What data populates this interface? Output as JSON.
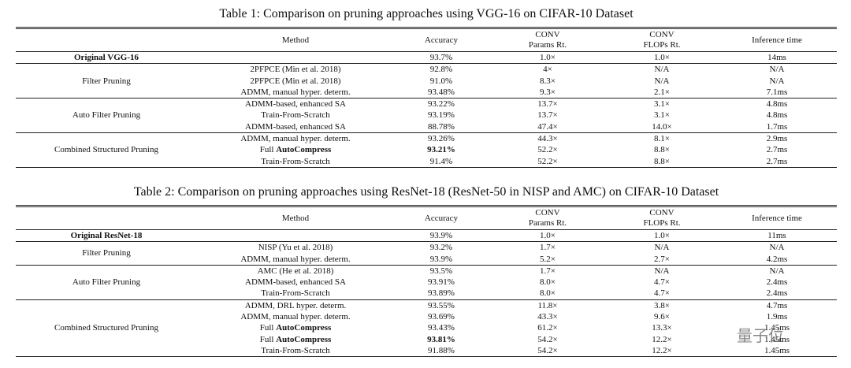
{
  "tables": [
    {
      "title": "Table 1: Comparison on pruning approaches using VGG-16 on CIFAR-10 Dataset",
      "header": [
        [
          "Method"
        ],
        [
          "Accuracy"
        ],
        [
          "CONV",
          "Params Rt."
        ],
        [
          "CONV",
          "FLOPs Rt."
        ],
        [
          "Inference time"
        ]
      ],
      "original": {
        "label": "Original VGG-16",
        "values": [
          "93.7%",
          "1.0×",
          "1.0×",
          "14ms"
        ]
      },
      "groups": [
        {
          "label": "Filter Pruning",
          "rows": [
            [
              "2PFPCE (Min et al. 2018)",
              "92.8%",
              "4×",
              "N/A",
              "N/A"
            ],
            [
              "2PFPCE (Min et al. 2018)",
              "91.0%",
              "8.3×",
              "N/A",
              "N/A"
            ],
            [
              "ADMM, manual hyper. determ.",
              "93.48%",
              "9.3×",
              "2.1×",
              "7.1ms"
            ]
          ]
        },
        {
          "label": "Auto Filter Pruning",
          "rows": [
            [
              "ADMM-based, enhanced SA",
              "93.22%",
              "13.7×",
              "3.1×",
              "4.8ms"
            ],
            [
              "Train-From-Scratch",
              "93.19%",
              "13.7×",
              "3.1×",
              "4.8ms"
            ],
            [
              "ADMM-based, enhanced SA",
              "88.78%",
              "47.4×",
              "14.0×",
              "1.7ms"
            ]
          ]
        },
        {
          "label": "Combined Structured Pruning",
          "rows": [
            [
              "ADMM, manual hyper. determ.",
              "93.26%",
              "44.3×",
              "8.1×",
              "2.9ms"
            ],
            [
              {
                "text": "Full",
                "bold": "AutoCompress"
              },
              {
                "bold": "93.21%"
              },
              "52.2×",
              "8.8×",
              "2.7ms"
            ],
            [
              "Train-From-Scratch",
              "91.4%",
              "52.2×",
              "8.8×",
              "2.7ms"
            ]
          ]
        }
      ]
    },
    {
      "title": "Table 2: Comparison on pruning approaches using ResNet-18 (ResNet-50 in NISP and AMC) on CIFAR-10 Dataset",
      "header": [
        [
          "Method"
        ],
        [
          "Accuracy"
        ],
        [
          "CONV",
          "Params Rt."
        ],
        [
          "CONV",
          "FLOPs Rt."
        ],
        [
          "Inference time"
        ]
      ],
      "original": {
        "label": "Original ResNet-18",
        "values": [
          "93.9%",
          "1.0×",
          "1.0×",
          "11ms"
        ]
      },
      "groups": [
        {
          "label": "Filter Pruning",
          "rows": [
            [
              "NISP (Yu et al. 2018)",
              "93.2%",
              "1.7×",
              "N/A",
              "N/A"
            ],
            [
              "ADMM, manual hyper. determ.",
              "93.9%",
              "5.2×",
              "2.7×",
              "4.2ms"
            ]
          ]
        },
        {
          "label": "Auto Filter Pruning",
          "rows": [
            [
              "AMC (He et al. 2018)",
              "93.5%",
              "1.7×",
              "N/A",
              "N/A"
            ],
            [
              "ADMM-based, enhanced SA",
              "93.91%",
              "8.0×",
              "4.7×",
              "2.4ms"
            ],
            [
              "Train-From-Scratch",
              "93.89%",
              "8.0×",
              "4.7×",
              "2.4ms"
            ]
          ]
        },
        {
          "label": "Combined Structured Pruning",
          "rows": [
            [
              "ADMM, DRL hyper. determ.",
              "93.55%",
              "11.8×",
              "3.8×",
              "4.7ms"
            ],
            [
              "ADMM, manual hyper. determ.",
              "93.69%",
              "43.3×",
              "9.6×",
              "1.9ms"
            ],
            [
              {
                "text": "Full",
                "bold": "AutoCompress"
              },
              "93.43%",
              "61.2×",
              "13.3×",
              "1.45ms"
            ],
            [
              {
                "text": "Full",
                "bold": "AutoCompress"
              },
              {
                "bold": "93.81%"
              },
              "54.2×",
              "12.2×",
              "1.45ms"
            ],
            [
              "Train-From-Scratch",
              "91.88%",
              "54.2×",
              "12.2×",
              "1.45ms"
            ]
          ]
        }
      ]
    }
  ],
  "watermark": "量子位"
}
